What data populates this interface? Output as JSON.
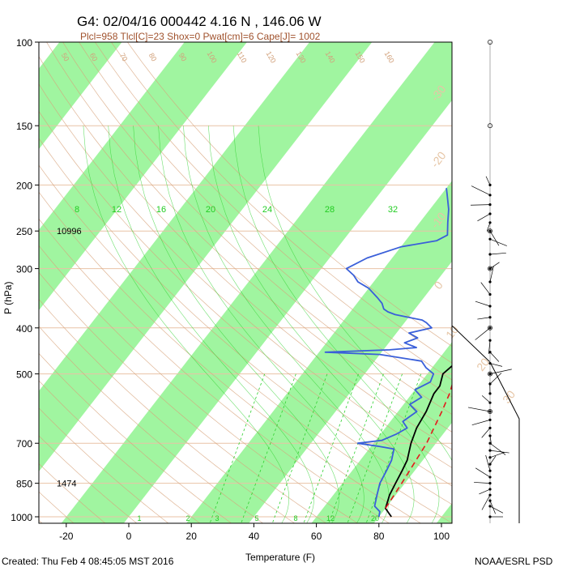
{
  "chart_data": {
    "type": "skew-t",
    "title": "G4: 02/04/16 000442   4.16 N , 146.06 W",
    "subtitle": "Plcl=958 Tlcl[C]=23 Shox=0 Pwat[cm]=6 Cape[J]= 1002",
    "xlabel": "Temperature (F)",
    "ylabel": "P (hPa)",
    "xlim": [
      -28,
      115
    ],
    "ylim": [
      1050,
      100
    ],
    "x_ticks": [
      -20,
      0,
      20,
      40,
      60,
      80,
      100
    ],
    "y_ticks": [
      100,
      150,
      200,
      250,
      300,
      400,
      500,
      700,
      850,
      1000
    ],
    "height_annotations": [
      {
        "p": 250,
        "text": "10996"
      },
      {
        "p": 850,
        "text": "1474"
      }
    ],
    "mixing_ratio_labels": [
      "8",
      "12",
      "16",
      "20",
      "24",
      "28",
      "32"
    ],
    "lower_ratio_labels": [
      "1",
      "2",
      "3",
      "5",
      "8",
      "12",
      "20"
    ],
    "adiabat_labels": [
      "50",
      "60",
      "70",
      "80",
      "90",
      "100",
      "110",
      "120",
      "130",
      "140",
      "150",
      "160"
    ],
    "skewed_temp_labels": [
      "-30",
      "-20",
      "-10",
      "0",
      "10",
      "20",
      "30"
    ],
    "series": [
      {
        "name": "temperature",
        "points": [
          [
            84,
            1000
          ],
          [
            80,
            960
          ],
          [
            78,
            900
          ],
          [
            77,
            850
          ],
          [
            76,
            800
          ],
          [
            75,
            760
          ],
          [
            72,
            700
          ],
          [
            70,
            650
          ],
          [
            69,
            600
          ],
          [
            67,
            550
          ],
          [
            67,
            530
          ],
          [
            65,
            500
          ],
          [
            66,
            480
          ],
          [
            63,
            450
          ],
          [
            62,
            425
          ],
          [
            60,
            400
          ],
          [
            59,
            380
          ],
          [
            57,
            360
          ],
          [
            56,
            340
          ],
          [
            53,
            320
          ],
          [
            51,
            300
          ],
          [
            49,
            280
          ],
          [
            47,
            265
          ],
          [
            46,
            250
          ],
          [
            44,
            235
          ],
          [
            43,
            220
          ],
          [
            39,
            205
          ]
        ]
      },
      {
        "name": "dewpoint",
        "points": [
          [
            80,
            1000
          ],
          [
            79,
            975
          ],
          [
            76,
            950
          ],
          [
            74,
            900
          ],
          [
            72,
            850
          ],
          [
            71,
            800
          ],
          [
            70,
            760
          ],
          [
            68,
            720
          ],
          [
            62,
            710
          ],
          [
            55,
            700
          ],
          [
            62,
            690
          ],
          [
            65,
            670
          ],
          [
            67,
            650
          ],
          [
            64,
            630
          ],
          [
            66,
            600
          ],
          [
            62,
            580
          ],
          [
            64,
            560
          ],
          [
            60,
            540
          ],
          [
            63,
            520
          ],
          [
            62,
            500
          ],
          [
            58,
            485
          ],
          [
            55,
            470
          ],
          [
            40,
            455
          ],
          [
            22,
            450
          ],
          [
            42,
            445
          ],
          [
            50,
            440
          ],
          [
            45,
            430
          ],
          [
            48,
            420
          ],
          [
            44,
            410
          ],
          [
            50,
            400
          ],
          [
            47,
            390
          ],
          [
            45,
            385
          ],
          [
            40,
            380
          ],
          [
            35,
            375
          ],
          [
            32,
            370
          ],
          [
            30,
            365
          ],
          [
            28,
            355
          ],
          [
            25,
            345
          ],
          [
            20,
            330
          ],
          [
            15,
            320
          ],
          [
            12,
            310
          ],
          [
            8,
            300
          ],
          [
            12,
            285
          ],
          [
            20,
            270
          ],
          [
            30,
            262
          ],
          [
            32,
            255
          ],
          [
            29,
            240
          ],
          [
            26,
            225
          ],
          [
            22,
            210
          ],
          [
            20,
            203
          ]
        ]
      },
      {
        "name": "parcel",
        "points": [
          [
            80,
            960
          ],
          [
            79,
            850
          ],
          [
            77,
            700
          ],
          [
            74,
            600
          ],
          [
            72,
            550
          ],
          [
            69,
            500
          ],
          [
            66,
            450
          ],
          [
            62,
            400
          ],
          [
            57,
            350
          ],
          [
            51,
            300
          ],
          [
            48,
            275
          ],
          [
            45,
            250
          ],
          [
            42,
            225
          ],
          [
            39,
            205
          ]
        ]
      }
    ],
    "wind_barbs_pressures": [
      1000,
      950,
      925,
      900,
      875,
      850,
      825,
      800,
      775,
      750,
      725,
      700,
      675,
      650,
      625,
      600,
      575,
      550,
      525,
      500,
      475,
      450,
      425,
      400,
      380,
      360,
      340,
      320,
      300,
      280,
      260,
      250,
      240,
      230,
      220,
      210,
      200
    ]
  },
  "footer": {
    "created": "Created: Thu Feb  4 08:45:05 MST 2016",
    "credit": "NOAA/ESRL PSD"
  },
  "colors": {
    "green_band": "#a0f5a0",
    "temperature": "#000000",
    "dewpoint": "#3a5fd9",
    "parcel": "#e31a1c",
    "isobar": "#e9c2a6",
    "adiabat": "#d7a27a",
    "mixing": "#2fd12f",
    "subtitle": "#a0522d"
  }
}
